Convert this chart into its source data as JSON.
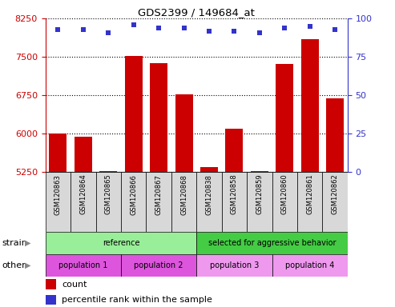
{
  "title": "GDS2399 / 149684_at",
  "samples": [
    "GSM120863",
    "GSM120864",
    "GSM120865",
    "GSM120866",
    "GSM120867",
    "GSM120868",
    "GSM120838",
    "GSM120858",
    "GSM120859",
    "GSM120860",
    "GSM120861",
    "GSM120862"
  ],
  "counts": [
    6000,
    5950,
    5280,
    7530,
    7380,
    6780,
    5350,
    6100,
    5270,
    7360,
    7850,
    6700
  ],
  "percentile_ranks": [
    93,
    93,
    91,
    96,
    94,
    94,
    92,
    92,
    91,
    94,
    95,
    93
  ],
  "ylim_left": [
    5250,
    8250
  ],
  "ylim_right": [
    0,
    100
  ],
  "yticks_left": [
    5250,
    6000,
    6750,
    7500,
    8250
  ],
  "yticks_right": [
    0,
    25,
    50,
    75,
    100
  ],
  "bar_color": "#cc0000",
  "dot_color": "#3333cc",
  "strain_colors": [
    "#99ee99",
    "#44cc44"
  ],
  "strain_groups": [
    {
      "label": "reference",
      "start": 0,
      "end": 6,
      "color": "#99ee99"
    },
    {
      "label": "selected for aggressive behavior",
      "start": 6,
      "end": 12,
      "color": "#44cc44"
    }
  ],
  "other_groups": [
    {
      "label": "population 1",
      "start": 0,
      "end": 3,
      "color": "#ee66ee"
    },
    {
      "label": "population 2",
      "start": 3,
      "end": 6,
      "color": "#ee88ee"
    },
    {
      "label": "population 3",
      "start": 6,
      "end": 9,
      "color": "#ee88ee"
    },
    {
      "label": "population 4",
      "start": 9,
      "end": 12,
      "color": "#ee88ee"
    }
  ],
  "legend_count_color": "#cc0000",
  "legend_dot_color": "#3333cc",
  "tick_color_left": "#cc0000",
  "tick_color_right": "#3333cc"
}
